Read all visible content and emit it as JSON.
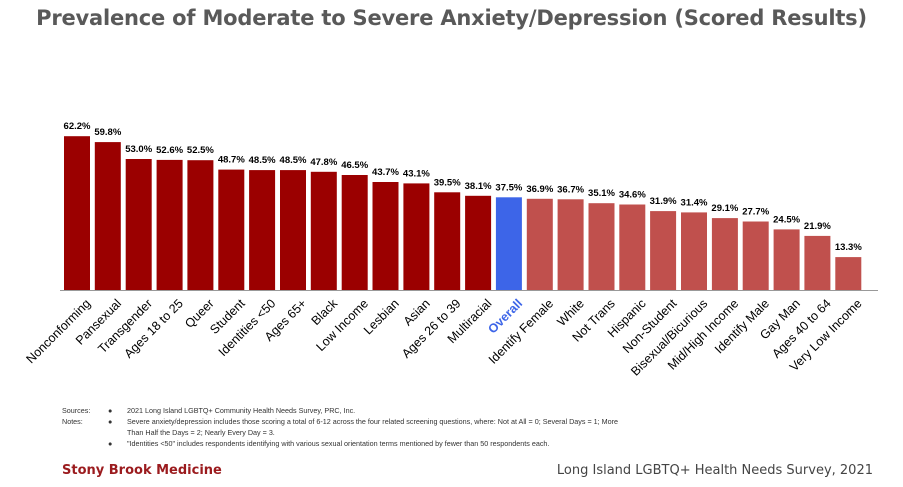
{
  "title": "Prevalence of Moderate to Severe Anxiety/Depression (Scored Results)",
  "colors": {
    "above": "#9b0000",
    "overall": "#3d65e8",
    "below": "#c0504d",
    "axis": "#999999",
    "overall_label": "#3d65e8"
  },
  "chart_data": {
    "type": "bar",
    "title": "Prevalence of Moderate to Severe Anxiety/Depression (Scored Results)",
    "ylim": [
      0,
      70
    ],
    "grid": false,
    "value_suffix": "%",
    "categories": [
      "Nonconforming",
      "Pansexual",
      "Transgender",
      "Ages 18 to 25",
      "Queer",
      "Student",
      "Identities <50",
      "Ages 65+",
      "Black",
      "Low Income",
      "Lesbian",
      "Asian",
      "Ages 26 to 39",
      "Multiracial",
      "Overall",
      "Identify Female",
      "White",
      "Not Trans",
      "Hispanic",
      "Non-Student",
      "Bisexual/Bicurious",
      "Mid/High Income",
      "Identify Male",
      "Gay Man",
      "Ages 40 to 64",
      "Very Low Income"
    ],
    "values": [
      62.2,
      59.8,
      53.0,
      52.6,
      52.5,
      48.7,
      48.5,
      48.5,
      47.8,
      46.5,
      43.7,
      43.1,
      39.5,
      38.1,
      37.5,
      36.9,
      36.7,
      35.1,
      34.6,
      31.9,
      31.4,
      29.1,
      27.7,
      24.5,
      21.9,
      13.3
    ],
    "groups": [
      "above",
      "above",
      "above",
      "above",
      "above",
      "above",
      "above",
      "above",
      "above",
      "above",
      "above",
      "above",
      "above",
      "above",
      "overall",
      "below",
      "below",
      "below",
      "below",
      "below",
      "below",
      "below",
      "below",
      "below",
      "below",
      "below"
    ]
  },
  "notes": {
    "sources_label": "Sources:",
    "notes_label": "Notes:",
    "bullet": "●",
    "source_1": "2021 Long Island LGBTQ+ Community Health Needs Survey, PRC, Inc.",
    "note_1a": "Severe anxiety/depression includes those scoring a total of 6-12 across the four related screening questions, where: Not at  All = 0; Several Days = 1; More",
    "note_1b": "Than Half the Days = 2; Nearly Every Day = 3.",
    "note_2": "\"Identities <50\" includes respondents identifying with various sexual orientation terms mentioned by fewer than 50 respondents each."
  },
  "footer": {
    "left": "Stony Brook Medicine",
    "right": "Long Island LGBTQ+ Health Needs Survey, 2021"
  }
}
